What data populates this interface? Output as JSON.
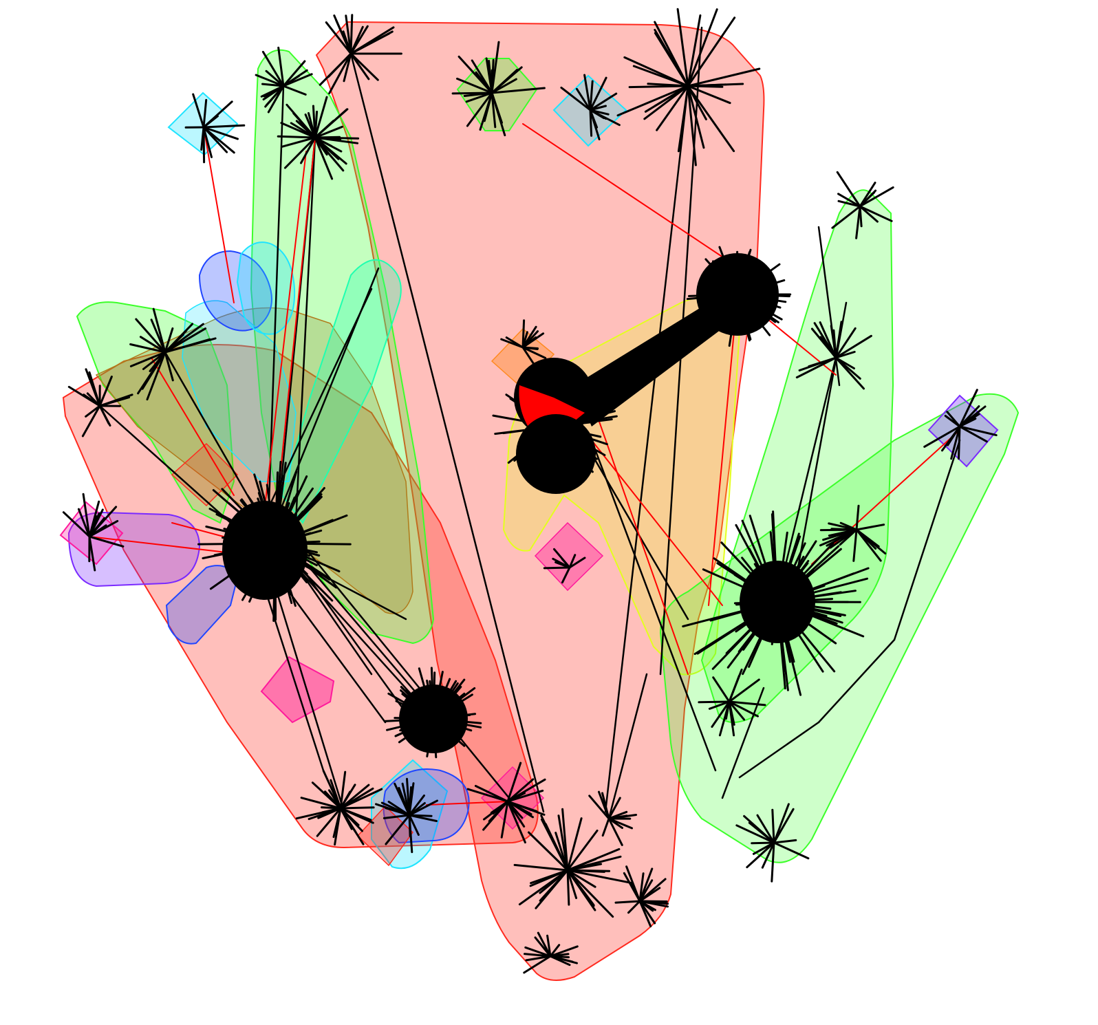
{
  "diagram": {
    "type": "clustered-network-graph",
    "labels": [],
    "cluster_color_groups": {
      "red": "#ff2a1f",
      "green": "#3cff2a",
      "cyan": "#1fe4ff",
      "blue": "#2046ff",
      "magenta": "#ff1a9c",
      "violet": "#7a2aff",
      "orange": "#ff8a1f",
      "yellow": "#e4ff1f",
      "teal": "#1fffb0",
      "edge-intercluster": "#ff0000",
      "edge-intracluster": "#000000"
    }
  }
}
